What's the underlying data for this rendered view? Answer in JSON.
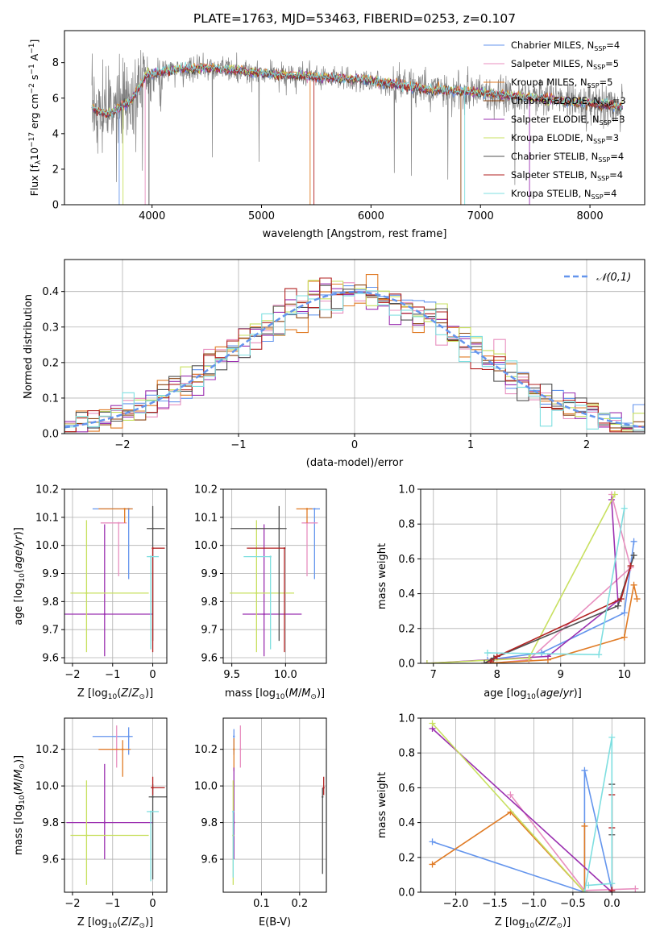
{
  "title": "PLATE=1763, MJD=53463, FIBERID=0253, z=0.107",
  "series": [
    {
      "name": "Chabrier MILES, N",
      "nssp": "4",
      "color": "#6495ed"
    },
    {
      "name": "Salpeter MILES, N",
      "nssp": "5",
      "color": "#e88fbf"
    },
    {
      "name": "Kroupa MILES, N",
      "nssp": "5",
      "color": "#e07b25"
    },
    {
      "name": "Chabrier ELODIE, N",
      "nssp": "3",
      "color": "#8b4513"
    },
    {
      "name": "Salpeter ELODIE, N",
      "nssp": "3",
      "color": "#9b30b0"
    },
    {
      "name": "Kroupa ELODIE, N",
      "nssp": "3",
      "color": "#c8e060"
    },
    {
      "name": "Chabrier STELIB, N",
      "nssp": "4",
      "color": "#505050"
    },
    {
      "name": "Salpeter STELIB, N",
      "nssp": "4",
      "color": "#b22222"
    },
    {
      "name": "Kroupa STELIB, N",
      "nssp": "4",
      "color": "#7fdfe0"
    }
  ],
  "chart_data": [
    {
      "id": "spectrum",
      "type": "line",
      "xlabel": "wavelength [Angstrom, rest frame]",
      "ylabel": "Flux [f_λ10^-17 erg cm^-2 s^-1 A^-1]",
      "xlim": [
        3200,
        8500
      ],
      "ylim": [
        0,
        9.8
      ],
      "xticks": [
        4000,
        5000,
        6000,
        7000,
        8000
      ],
      "yticks": [
        0,
        2,
        4,
        6,
        8
      ],
      "data_color": "#808080",
      "continuum": [
        [
          3450,
          5.4
        ],
        [
          3600,
          5.1
        ],
        [
          3800,
          5.8
        ],
        [
          3950,
          7.3
        ],
        [
          4200,
          7.6
        ],
        [
          4500,
          7.7
        ],
        [
          5000,
          7.4
        ],
        [
          5500,
          7.2
        ],
        [
          6000,
          7.0
        ],
        [
          6500,
          6.5
        ],
        [
          7000,
          6.3
        ],
        [
          7500,
          6.0
        ],
        [
          8000,
          5.7
        ],
        [
          8300,
          5.5
        ]
      ],
      "legend_position": "upper right"
    },
    {
      "id": "residuals",
      "type": "histogram",
      "xlabel": "(data-model)/error",
      "ylabel": "Normed distribution",
      "xlim": [
        -2.5,
        2.5
      ],
      "ylim": [
        0,
        0.49
      ],
      "xticks": [
        -2,
        -1,
        0,
        1,
        2
      ],
      "yticks": [
        0.0,
        0.1,
        0.2,
        0.3,
        0.4
      ],
      "legend": "𝒩(0,1)",
      "bin_width": 0.1,
      "grid": true
    },
    {
      "id": "age-vs-Z",
      "type": "scatter",
      "xlabel": "Z [log10(Z/Z⊙)]",
      "ylabel": "age [log10(age/yr)]",
      "xlim": [
        -2.2,
        0.35
      ],
      "ylim": [
        9.58,
        10.2
      ],
      "xticks": [
        -2,
        -1,
        0
      ],
      "yticks": [
        9.6,
        9.7,
        9.8,
        9.9,
        10.0,
        10.1,
        10.2
      ],
      "points": [
        {
          "s": 0,
          "x": -0.6,
          "y": 10.13,
          "xe": [
            0.9,
            0.1
          ],
          "ye": [
            0.25,
            0.0
          ]
        },
        {
          "s": 1,
          "x": -0.85,
          "y": 10.08,
          "xe": [
            0.45,
            0.2
          ],
          "ye": [
            0.19,
            0.0
          ]
        },
        {
          "s": 2,
          "x": -0.7,
          "y": 10.13,
          "xe": [
            0.65,
            0.2
          ],
          "ye": [
            0.05,
            0.0
          ]
        },
        {
          "s": 4,
          "x": -1.2,
          "y": 9.755,
          "xe": [
            1.0,
            1.2
          ],
          "ye": [
            0.15,
            0.32
          ]
        },
        {
          "s": 5,
          "x": -1.65,
          "y": 9.83,
          "xe": [
            0.4,
            1.55
          ],
          "ye": [
            0.21,
            0.26
          ]
        },
        {
          "s": 6,
          "x": 0.0,
          "y": 10.06,
          "xe": [
            0.15,
            0.3
          ],
          "ye": [
            0.4,
            0.08
          ]
        },
        {
          "s": 7,
          "x": 0.0,
          "y": 9.99,
          "xe": [
            0.0,
            0.3
          ],
          "ye": [
            0.37,
            0.0
          ]
        },
        {
          "s": 8,
          "x": -0.05,
          "y": 9.96,
          "xe": [
            0.1,
            0.2
          ],
          "ye": [
            0.33,
            0.0
          ]
        }
      ]
    },
    {
      "id": "age-vs-mass",
      "type": "scatter",
      "xlabel": "mass [log10(M/M⊙)]",
      "ylabel": "",
      "xlim": [
        9.42,
        10.38
      ],
      "ylim": [
        9.58,
        10.2
      ],
      "xticks": [
        9.5,
        10.0
      ],
      "yticks": [
        9.6,
        9.7,
        9.8,
        9.9,
        10.0,
        10.1,
        10.2
      ],
      "points": [
        {
          "s": 0,
          "x": 10.27,
          "y": 10.13,
          "xe": [
            0.05,
            0.05
          ],
          "ye": [
            0.25,
            0.0
          ]
        },
        {
          "s": 1,
          "x": 10.2,
          "y": 10.08,
          "xe": [
            0.05,
            0.1
          ],
          "ye": [
            0.19,
            0.0
          ]
        },
        {
          "s": 2,
          "x": 10.2,
          "y": 10.13,
          "xe": [
            0.1,
            0.05
          ],
          "ye": [
            0.05,
            0.0
          ]
        },
        {
          "s": 4,
          "x": 9.8,
          "y": 9.755,
          "xe": [
            0.2,
            0.35
          ],
          "ye": [
            0.15,
            0.32
          ]
        },
        {
          "s": 5,
          "x": 9.73,
          "y": 9.83,
          "xe": [
            0.25,
            0.35
          ],
          "ye": [
            0.21,
            0.26
          ]
        },
        {
          "s": 6,
          "x": 9.94,
          "y": 10.06,
          "xe": [
            0.45,
            0.07
          ],
          "ye": [
            0.4,
            0.08
          ]
        },
        {
          "s": 7,
          "x": 9.99,
          "y": 9.99,
          "xe": [
            0.35,
            0.0
          ],
          "ye": [
            0.37,
            0.0
          ]
        },
        {
          "s": 8,
          "x": 9.86,
          "y": 9.96,
          "xe": [
            0.25,
            0.0
          ],
          "ye": [
            0.33,
            0.0
          ]
        }
      ]
    },
    {
      "id": "weight-vs-age",
      "type": "line",
      "xlabel": "age [log10(age/yr)]",
      "ylabel": "mass weight",
      "xlim": [
        6.8,
        10.32
      ],
      "ylim": [
        0,
        1.0
      ],
      "xticks": [
        7,
        8,
        9,
        10
      ],
      "yticks": [
        0.0,
        0.2,
        0.4,
        0.6,
        0.8,
        1.0
      ],
      "lines": [
        {
          "s": 0,
          "pts": [
            [
              7.85,
              0.02
            ],
            [
              8.7,
              0.06
            ],
            [
              10.0,
              0.29
            ],
            [
              10.15,
              0.7
            ]
          ]
        },
        {
          "s": 1,
          "pts": [
            [
              7.9,
              0.0
            ],
            [
              8.5,
              0.02
            ],
            [
              10.1,
              0.55
            ],
            [
              9.8,
              0.97
            ]
          ]
        },
        {
          "s": 2,
          "pts": [
            [
              7.8,
              0.0
            ],
            [
              8.8,
              0.02
            ],
            [
              10.0,
              0.15
            ],
            [
              10.15,
              0.45
            ],
            [
              10.2,
              0.37
            ]
          ]
        },
        {
          "s": 4,
          "pts": [
            [
              6.9,
              0.0
            ],
            [
              8.8,
              0.04
            ],
            [
              9.9,
              0.36
            ],
            [
              9.8,
              0.94
            ]
          ]
        },
        {
          "s": 5,
          "pts": [
            [
              6.9,
              0.0
            ],
            [
              8.5,
              0.03
            ],
            [
              9.85,
              0.97
            ]
          ]
        },
        {
          "s": 6,
          "pts": [
            [
              7.8,
              0.0
            ],
            [
              7.95,
              0.03
            ],
            [
              9.9,
              0.33
            ],
            [
              10.15,
              0.62
            ]
          ]
        },
        {
          "s": 7,
          "pts": [
            [
              7.9,
              0.01
            ],
            [
              8.0,
              0.04
            ],
            [
              9.95,
              0.37
            ],
            [
              10.1,
              0.56
            ]
          ]
        },
        {
          "s": 8,
          "pts": [
            [
              7.85,
              0.06
            ],
            [
              9.6,
              0.05
            ],
            [
              10.0,
              0.89
            ]
          ]
        }
      ]
    },
    {
      "id": "mass-vs-Z",
      "type": "scatter",
      "xlabel": "Z [log10(Z/Z⊙)]",
      "ylabel": "mass [log10(M/M⊙)]",
      "xlim": [
        -2.2,
        0.35
      ],
      "ylim": [
        9.42,
        10.37
      ],
      "xticks": [
        -2,
        -1,
        0
      ],
      "yticks": [
        9.6,
        9.8,
        10.0,
        10.2
      ],
      "points": [
        {
          "s": 0,
          "x": -0.6,
          "y": 10.27,
          "xe": [
            0.9,
            0.1
          ],
          "ye": [
            0.1,
            0.05
          ]
        },
        {
          "s": 1,
          "x": -0.9,
          "y": 10.2,
          "xe": [
            0.45,
            0.2
          ],
          "ye": [
            0.1,
            0.13
          ]
        },
        {
          "s": 2,
          "x": -0.75,
          "y": 10.2,
          "xe": [
            0.6,
            0.2
          ],
          "ye": [
            0.15,
            0.05
          ]
        },
        {
          "s": 4,
          "x": -1.2,
          "y": 9.8,
          "xe": [
            0.95,
            1.2
          ],
          "ye": [
            0.2,
            0.32
          ]
        },
        {
          "s": 5,
          "x": -1.65,
          "y": 9.73,
          "xe": [
            0.4,
            1.55
          ],
          "ye": [
            0.27,
            0.3
          ]
        },
        {
          "s": 6,
          "x": 0.0,
          "y": 9.94,
          "xe": [
            0.1,
            0.35
          ],
          "ye": [
            0.45,
            0.07
          ]
        },
        {
          "s": 7,
          "x": 0.0,
          "y": 9.99,
          "xe": [
            0.05,
            0.3
          ],
          "ye": [
            0.04,
            0.06
          ]
        },
        {
          "s": 8,
          "x": -0.05,
          "y": 9.86,
          "xe": [
            0.1,
            0.2
          ],
          "ye": [
            0.38,
            0.0
          ]
        }
      ]
    },
    {
      "id": "mass-vs-EBV",
      "type": "scatter",
      "xlabel": "E(B-V)",
      "ylabel": "",
      "xlim": [
        0.0,
        0.27
      ],
      "ylim": [
        9.42,
        10.37
      ],
      "xticks": [
        0.1,
        0.2
      ],
      "yticks": [
        9.6,
        9.8,
        10.0,
        10.2
      ],
      "points": [
        {
          "s": 0,
          "x": 0.028,
          "y": 10.27,
          "ye": [
            0.1,
            0.04
          ]
        },
        {
          "s": 1,
          "x": 0.045,
          "y": 10.2,
          "ye": [
            0.1,
            0.13
          ]
        },
        {
          "s": 2,
          "x": 0.028,
          "y": 10.2,
          "ye": [
            0.12,
            0.06
          ]
        },
        {
          "s": 4,
          "x": 0.028,
          "y": 9.8,
          "ye": [
            0.2,
            0.3
          ]
        },
        {
          "s": 5,
          "x": 0.026,
          "y": 9.73,
          "ye": [
            0.27,
            0.3
          ]
        },
        {
          "s": 6,
          "x": 0.26,
          "y": 9.94,
          "ye": [
            0.42,
            0.05
          ]
        },
        {
          "s": 7,
          "x": 0.263,
          "y": 9.99,
          "ye": [
            0.04,
            0.06
          ]
        },
        {
          "s": 8,
          "x": 0.026,
          "y": 9.86,
          "ye": [
            0.36,
            0.0
          ]
        }
      ]
    },
    {
      "id": "weight-vs-Z",
      "type": "line",
      "xlabel": "Z [log10(Z/Z⊙)]",
      "ylabel": "mass weight",
      "xlim": [
        -2.45,
        0.42
      ],
      "ylim": [
        0,
        1.0
      ],
      "xticks": [
        -2.0,
        -1.5,
        -1.0,
        -0.5,
        0.0
      ],
      "yticks": [
        0.0,
        0.2,
        0.4,
        0.6,
        0.8,
        1.0
      ],
      "lines": [
        {
          "s": 0,
          "pts": [
            [
              -2.3,
              0.29
            ],
            [
              -0.35,
              0.0
            ],
            [
              -0.35,
              0.7
            ],
            [
              0.0,
              0.01
            ]
          ]
        },
        {
          "s": 1,
          "pts": [
            [
              -1.3,
              0.56
            ],
            [
              -0.35,
              0.01
            ],
            [
              0.3,
              0.02
            ]
          ]
        },
        {
          "s": 2,
          "pts": [
            [
              -2.3,
              0.16
            ],
            [
              -1.3,
              0.46
            ],
            [
              -0.35,
              0.0
            ],
            [
              -0.35,
              0.38
            ]
          ]
        },
        {
          "s": 4,
          "pts": [
            [
              -2.3,
              0.94
            ],
            [
              0.0,
              0.0
            ]
          ]
        },
        {
          "s": 5,
          "pts": [
            [
              -2.3,
              0.97
            ],
            [
              -0.35,
              0.0
            ]
          ]
        },
        {
          "s": 6,
          "pts": [
            [
              0.0,
              0.62
            ],
            [
              0.0,
              0.33
            ],
            [
              0.0,
              0.0
            ]
          ]
        },
        {
          "s": 7,
          "pts": [
            [
              0.0,
              0.56
            ],
            [
              0.0,
              0.37
            ],
            [
              0.0,
              0.01
            ]
          ]
        },
        {
          "s": 8,
          "pts": [
            [
              -0.35,
              0.0
            ],
            [
              0.0,
              0.89
            ],
            [
              0.0,
              0.05
            ],
            [
              -0.3,
              0.04
            ]
          ]
        }
      ]
    }
  ]
}
